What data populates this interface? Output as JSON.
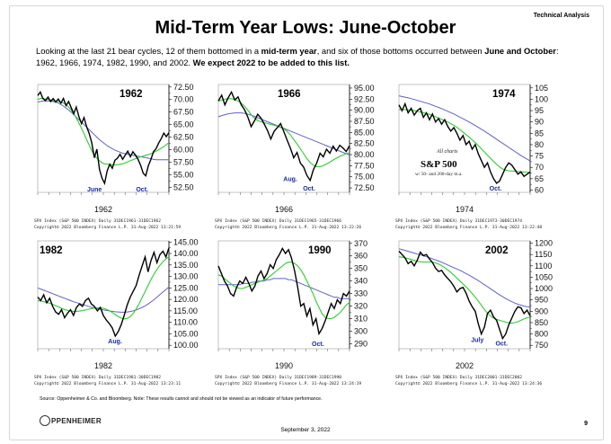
{
  "header": {
    "section_tag": "Technical Analysis",
    "title": "Mid-Term Year Lows: June-October",
    "intro_part1": "Looking at the last 21 bear cycles, 12 of them bottomed in a ",
    "intro_bold1": "mid-term year",
    "intro_part2": ", and six of those bottoms occurred between ",
    "intro_bold2": "June and October",
    "intro_part3": ": 1962, 1966, 1974, 1982, 1990, and 2002.  ",
    "intro_bold3": "We expect 2022 to be added to this list."
  },
  "footer": {
    "source_note": "Source: Oppenheimer & Co. and Bloomberg.  Note: These results cannot and should not be viewed as an indicator of future performance.",
    "logo_text": "PPENHEIMER",
    "date": "September 3, 2022",
    "page_number": "9"
  },
  "colors": {
    "price": "#000000",
    "ma50": "#2ecc2e",
    "ma200": "#6060c8",
    "label_blue": "#1b2a9c"
  },
  "chart_data": [
    {
      "type": "line",
      "year_label": "1962",
      "xlabel": "1962",
      "ylim": [
        51.5,
        73
      ],
      "ticks": [
        "72.50",
        "70.00",
        "67.50",
        "65.00",
        "62.50",
        "60.00",
        "57.50",
        "55.00",
        "52.50"
      ],
      "tick_values": [
        72.5,
        70,
        67.5,
        65,
        62.5,
        60,
        57.5,
        55,
        52.5
      ],
      "price": [
        70.8,
        71.5,
        70.2,
        69.8,
        70.5,
        69.6,
        70.2,
        69.5,
        70.1,
        69.3,
        70.2,
        68.8,
        69.6,
        68.4,
        67.2,
        68.5,
        66.6,
        65.2,
        66.4,
        64.6,
        63.2,
        61.4,
        58.4,
        60.1,
        56.1,
        54.3,
        53.3,
        55.8,
        57.1,
        56.3,
        57.9,
        58.3,
        59.1,
        58.1,
        58.9,
        59.7,
        58.6,
        59.6,
        58.9,
        58.1,
        56.9,
        55.3,
        54.8,
        56.8,
        58.1,
        59.6,
        60.2,
        61.3,
        62.2,
        63.3,
        62.6,
        63.4
      ],
      "ma50": [
        70.0,
        70.2,
        70.2,
        70.1,
        70.0,
        69.9,
        69.8,
        69.7,
        69.6,
        69.5,
        69.3,
        69.0,
        68.5,
        67.9,
        67.2,
        66.3,
        65.3,
        64.3,
        63.2,
        62.0,
        60.9,
        59.8,
        58.9,
        58.3,
        57.8,
        57.4,
        57.2,
        57.1,
        57.0,
        57.0,
        57.0,
        57.0,
        57.1,
        57.2,
        57.4,
        57.6,
        57.8,
        58.0,
        58.2,
        58.4,
        58.6,
        58.7,
        58.9,
        59.0,
        59.2,
        59.4,
        59.7,
        60.0,
        60.3,
        60.6,
        61.0,
        61.4
      ],
      "ma200": [
        69.5,
        69.6,
        69.7,
        69.7,
        69.7,
        69.7,
        69.6,
        69.5,
        69.3,
        69.0,
        68.7,
        68.3,
        67.9,
        67.5,
        67.0,
        66.5,
        66.0,
        65.5,
        65.0,
        64.5,
        64.0,
        63.5,
        63.0,
        62.5,
        62.0,
        61.6,
        61.2,
        60.8,
        60.5,
        60.2,
        59.9,
        59.7,
        59.5,
        59.3,
        59.2,
        59.1,
        59.0,
        58.9,
        58.8,
        58.7,
        58.6,
        58.5,
        58.4,
        58.3,
        58.2,
        58.1,
        58.0,
        58.0,
        58.0,
        58.0,
        58.0,
        58.0
      ],
      "annotations": [
        {
          "text": "June",
          "i": 22,
          "v": 51.9
        },
        {
          "text": "Oct.",
          "i": 41,
          "v": 51.9
        }
      ],
      "footer_line1": "SPX Index (S&P 500 INDEX)  Daily 31DEC1961-31DEC1962",
      "footer_line2": "Copyright© 2022 Bloomberg Finance L.P.  31-Aug-2022 13:21:59"
    },
    {
      "type": "line",
      "year_label": "1966",
      "xlabel": "1966",
      "ylim": [
        71.5,
        95.8
      ],
      "ticks": [
        "95.00",
        "92.50",
        "90.00",
        "87.50",
        "85.00",
        "82.50",
        "80.00",
        "77.50",
        "75.00",
        "72.50"
      ],
      "tick_values": [
        95,
        92.5,
        90,
        87.5,
        85,
        82.5,
        80,
        77.5,
        75,
        72.5
      ],
      "price": [
        92.1,
        93.4,
        91.2,
        92.8,
        94.1,
        92.3,
        93.0,
        91.2,
        90.1,
        88.4,
        86.3,
        87.6,
        89.1,
        88.2,
        86.9,
        85.4,
        83.5,
        85.2,
        86.1,
        87.0,
        85.1,
        83.2,
        81.4,
        79.3,
        80.5,
        78.1,
        77.2,
        75.3,
        74.2,
        76.6,
        78.1,
        80.3,
        79.5,
        81.2,
        80.3,
        81.9,
        80.8,
        82.1,
        81.5,
        80.7,
        82.0
      ],
      "ma50": [
        92.0,
        92.3,
        92.5,
        92.6,
        92.6,
        92.4,
        92.1,
        91.6,
        90.9,
        90.0,
        89.0,
        88.2,
        87.7,
        87.4,
        87.2,
        87.0,
        86.8,
        86.6,
        86.4,
        86.1,
        85.8,
        85.2,
        84.4,
        83.4,
        82.4,
        81.3,
        80.2,
        79.1,
        78.2,
        77.6,
        77.3,
        77.3,
        77.5,
        77.9,
        78.3,
        78.8,
        79.2,
        79.6,
        79.9,
        80.2,
        80.4
      ],
      "ma200": [
        88.5,
        88.8,
        89.0,
        89.2,
        89.3,
        89.4,
        89.4,
        89.4,
        89.3,
        89.1,
        88.9,
        88.6,
        88.3,
        88.0,
        87.7,
        87.4,
        87.1,
        86.8,
        86.5,
        86.2,
        85.9,
        85.6,
        85.3,
        85.0,
        84.7,
        84.4,
        84.1,
        83.8,
        83.5,
        83.2,
        82.9,
        82.6,
        82.3,
        82.0,
        81.7,
        81.4,
        81.1,
        80.8,
        80.5,
        80.2,
        79.9
      ],
      "annotations": [
        {
          "text": "Aug.",
          "i": 22,
          "v": 74.2
        },
        {
          "text": "Oct.",
          "i": 28,
          "v": 72.1
        }
      ],
      "footer_line1": "SPX Index (S&P 500 INDEX)  Daily 31DEC1965-31DEC1966",
      "footer_line2": "Copyright© 2022 Bloomberg Finance L.P.  31-Aug-2022 13:22:26"
    },
    {
      "type": "line",
      "year_label": "1974",
      "xlabel": "1974",
      "ylim": [
        59,
        106.5
      ],
      "ticks": [
        "105",
        "100",
        "95",
        "90",
        "85",
        "80",
        "75",
        "70",
        "65",
        "60"
      ],
      "tick_values": [
        105,
        100,
        95,
        90,
        85,
        80,
        75,
        70,
        65,
        60
      ],
      "price": [
        97.5,
        95.0,
        98.0,
        94.0,
        96.0,
        93.0,
        95.0,
        96.0,
        92.0,
        94.0,
        91.0,
        93.5,
        90.0,
        91.5,
        89.0,
        91.0,
        88.0,
        86.0,
        87.5,
        85.0,
        82.0,
        84.0,
        80.0,
        81.5,
        78.0,
        80.0,
        76.0,
        73.0,
        70.0,
        72.0,
        68.0,
        65.0,
        63.0,
        64.0,
        67.0,
        70.0,
        72.0,
        71.0,
        69.0,
        67.0,
        68.0,
        66.0,
        67.0,
        68.0
      ],
      "ma50": [
        95.5,
        95.5,
        95.4,
        95.3,
        95.2,
        95.0,
        94.7,
        94.4,
        94.1,
        93.7,
        93.3,
        92.8,
        92.3,
        91.8,
        91.2,
        90.6,
        90.0,
        89.3,
        88.5,
        87.6,
        86.6,
        85.5,
        84.4,
        83.3,
        82.1,
        80.9,
        79.6,
        78.2,
        76.8,
        75.4,
        74.0,
        72.6,
        71.3,
        70.2,
        69.3,
        68.8,
        68.5,
        68.4,
        68.3,
        68.2,
        68.1,
        68.0,
        67.9,
        67.8
      ],
      "ma200": [
        101.5,
        101.2,
        100.9,
        100.6,
        100.3,
        99.9,
        99.5,
        99.1,
        98.7,
        98.3,
        97.9,
        97.4,
        96.9,
        96.4,
        95.9,
        95.3,
        94.7,
        94.1,
        93.5,
        92.8,
        92.1,
        91.4,
        90.7,
        90.0,
        89.2,
        88.4,
        87.6,
        86.8,
        86.0,
        85.1,
        84.2,
        83.3,
        82.4,
        81.5,
        80.6,
        79.7,
        78.8,
        77.9,
        77.0,
        76.1,
        75.2,
        74.4,
        73.6,
        72.8
      ],
      "annotations": [
        {
          "text": "Oct.",
          "i": 32,
          "v": 60.2
        }
      ],
      "note_small": "All charts",
      "note_big": "S&P 500",
      "note_sub": "w/ 50- and 200-day m.a.",
      "footer_line1": "SPX Index (S&P 500 INDEX)  Daily 31DEC1973-30DEC1974",
      "footer_line2": "Copyright© 2022 Bloomberg Finance L.P.  31-Aug-2022 13:22:48"
    },
    {
      "type": "line",
      "year_label": "1982",
      "xlabel": "1982",
      "ylim": [
        98.5,
        145.5
      ],
      "ticks": [
        "145.00",
        "140.00",
        "135.00",
        "130.00",
        "125.00",
        "120.00",
        "115.00",
        "110.00",
        "105.00",
        "100.00"
      ],
      "tick_values": [
        145,
        140,
        135,
        130,
        125,
        120,
        115,
        110,
        105,
        100
      ],
      "price": [
        121.0,
        119.5,
        122.0,
        118.5,
        120.5,
        117.0,
        114.5,
        113.5,
        115.5,
        112.0,
        114.0,
        115.5,
        113.0,
        116.5,
        118.0,
        117.0,
        119.5,
        120.5,
        118.0,
        117.0,
        115.0,
        116.5,
        113.0,
        111.0,
        109.5,
        107.5,
        104.0,
        106.0,
        109.0,
        113.0,
        117.5,
        121.0,
        123.5,
        126.0,
        130.5,
        134.5,
        138.5,
        132.0,
        137.0,
        140.5,
        136.0,
        139.5,
        141.0,
        138.5,
        142.5
      ],
      "ma50": [
        119.5,
        119.3,
        119.0,
        118.7,
        118.3,
        117.8,
        117.3,
        116.7,
        116.1,
        115.6,
        115.2,
        114.9,
        114.8,
        114.8,
        114.9,
        115.1,
        115.4,
        115.7,
        116.0,
        116.2,
        116.3,
        116.3,
        116.1,
        115.7,
        115.1,
        114.3,
        113.4,
        112.5,
        111.8,
        111.5,
        111.7,
        112.5,
        113.9,
        115.8,
        118.1,
        120.7,
        123.4,
        126.1,
        128.7,
        131.0,
        133.1,
        134.9,
        136.4,
        137.6,
        138.6
      ],
      "ma200": [
        125.0,
        124.5,
        124.0,
        123.5,
        123.0,
        122.5,
        122.0,
        121.5,
        121.0,
        120.5,
        120.0,
        119.5,
        119.0,
        118.6,
        118.2,
        117.8,
        117.4,
        117.0,
        116.6,
        116.3,
        116.0,
        115.7,
        115.4,
        115.2,
        115.0,
        114.8,
        114.6,
        114.5,
        114.4,
        114.4,
        114.5,
        114.7,
        115.0,
        115.4,
        115.9,
        116.5,
        117.2,
        118.0,
        118.9,
        119.9,
        121.0,
        122.1,
        123.2,
        124.3,
        125.4
      ],
      "annotations": [
        {
          "text": "Aug.",
          "i": 26,
          "v": 101.2
        }
      ],
      "footer_line1": "SPX Index (S&P 500 INDEX)  Daily 31DEC1981-30DEC1982",
      "footer_line2": "Copyright© 2022 Bloomberg Finance L.P.  31-Aug-2022 13:23:11"
    },
    {
      "type": "line",
      "year_label": "1990",
      "xlabel": "1990",
      "ylim": [
        286,
        372
      ],
      "ticks": [
        "370",
        "360",
        "350",
        "340",
        "330",
        "320",
        "310",
        "300",
        "290"
      ],
      "tick_values": [
        370,
        360,
        350,
        340,
        330,
        320,
        310,
        300,
        290
      ],
      "price": [
        352,
        346,
        340,
        336,
        330,
        328,
        335,
        340,
        338,
        343,
        338,
        332,
        336,
        344,
        348,
        342,
        346,
        353,
        350,
        357,
        361,
        366,
        362,
        365,
        358,
        348,
        335,
        320,
        322,
        312,
        318,
        305,
        310,
        298,
        302,
        308,
        315,
        322,
        318,
        325,
        322,
        330,
        328,
        332
      ],
      "ma50": [
        345,
        344,
        342,
        340,
        338,
        336,
        335,
        334,
        334,
        335,
        336,
        337,
        338,
        339,
        340,
        341,
        342,
        344,
        346,
        348,
        350,
        352,
        354,
        355,
        355,
        354,
        352,
        349,
        345,
        340,
        335,
        330,
        324,
        319,
        314,
        311,
        310,
        310,
        311,
        313,
        315,
        318,
        321,
        323
      ],
      "ma200": [
        337,
        337,
        337,
        337,
        337,
        337,
        337,
        337,
        338,
        338,
        338,
        339,
        339,
        340,
        340,
        340,
        341,
        341,
        342,
        342,
        342,
        342,
        342,
        341,
        341,
        340,
        339,
        338,
        337,
        336,
        335,
        334,
        333,
        332,
        331,
        330,
        329,
        328,
        327,
        327,
        326,
        326,
        326,
        326
      ],
      "annotations": [
        {
          "text": "Oct.",
          "i": 33,
          "v": 289
        }
      ],
      "footer_line1": "SPX Index (S&P 500 INDEX)  Daily 31DEC1989-31DEC1990",
      "footer_line2": "Copyright© 2022 Bloomberg Finance L.P.  31-Aug-2022 13:24:19"
    },
    {
      "type": "line",
      "year_label": "2002",
      "xlabel": "2002",
      "ylim": [
        735,
        1210
      ],
      "ticks": [
        "1200",
        "1150",
        "1100",
        "1050",
        "1000",
        "950",
        "900",
        "850",
        "800",
        "750"
      ],
      "tick_values": [
        1200,
        1150,
        1100,
        1050,
        1000,
        950,
        900,
        850,
        800,
        750
      ],
      "price": [
        1165,
        1150,
        1135,
        1110,
        1120,
        1100,
        1125,
        1160,
        1145,
        1150,
        1130,
        1115,
        1090,
        1075,
        1080,
        1060,
        1045,
        1030,
        1010,
        985,
        1000,
        1005,
        980,
        945,
        920,
        900,
        845,
        800,
        830,
        890,
        905,
        875,
        860,
        820,
        780,
        800,
        840,
        870,
        900,
        920,
        915,
        890,
        905,
        880
      ],
      "ma50": [
        1140,
        1138,
        1135,
        1132,
        1128,
        1124,
        1120,
        1118,
        1117,
        1117,
        1117,
        1116,
        1113,
        1108,
        1101,
        1092,
        1082,
        1071,
        1059,
        1046,
        1033,
        1020,
        1007,
        993,
        978,
        962,
        945,
        926,
        908,
        892,
        879,
        870,
        864,
        860,
        856,
        852,
        849,
        848,
        850,
        854,
        860,
        866,
        871,
        875
      ],
      "ma200": [
        1175,
        1172,
        1168,
        1164,
        1160,
        1156,
        1152,
        1148,
        1144,
        1140,
        1136,
        1131,
        1126,
        1121,
        1116,
        1110,
        1104,
        1098,
        1092,
        1086,
        1080,
        1073,
        1066,
        1059,
        1051,
        1043,
        1035,
        1026,
        1017,
        1008,
        999,
        990,
        981,
        972,
        964,
        956,
        949,
        942,
        936,
        931,
        927,
        923,
        920,
        918
      ],
      "annotations": [
        {
          "text": "July",
          "i": 26,
          "v": 768
        },
        {
          "text": "Oct.",
          "i": 34,
          "v": 752
        }
      ],
      "footer_line1": "SPX Index (S&P 500 INDEX)  Daily 31DEC2001-31DEC2002",
      "footer_line2": "Copyright© 2022 Bloomberg Finance L.P.  31-Aug-2022 13:24:36"
    }
  ]
}
